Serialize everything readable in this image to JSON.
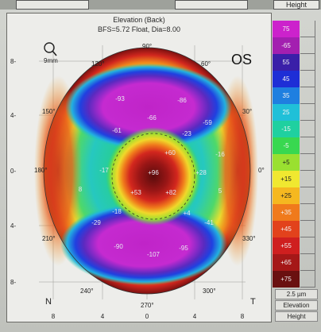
{
  "top_strip": {
    "height_label": "Height"
  },
  "map": {
    "title": "Elevation (Back)",
    "subtitle": "BFS=5.72 Float, Dia=8.00",
    "eye_label": "OS",
    "zoom_label": "9mm",
    "nasal_label": "N",
    "temporal_label": "T",
    "axis_ticks_left": [
      "8-",
      "4-",
      "0-",
      "4-",
      "8-"
    ],
    "axis_ticks_bottom": [
      "8",
      "4",
      "0",
      "4",
      "8"
    ],
    "degrees": {
      "d90": "90°",
      "d60": "60°",
      "d30": "30°",
      "d0": "0°",
      "d330": "330°",
      "d300": "300°",
      "d270": "270°",
      "d240": "240°",
      "d210": "210°",
      "d180": "180°",
      "d150": "150°",
      "d120": "120°"
    },
    "values": [
      {
        "id": "v1",
        "text": "-93"
      },
      {
        "id": "v2",
        "text": "-86"
      },
      {
        "id": "v3",
        "text": "-66"
      },
      {
        "id": "v4",
        "text": "-61"
      },
      {
        "id": "v5",
        "text": "-59"
      },
      {
        "id": "v6",
        "text": "-23"
      },
      {
        "id": "v7",
        "text": "+60"
      },
      {
        "id": "v8",
        "text": "-16"
      },
      {
        "id": "v9",
        "text": "-17"
      },
      {
        "id": "v10",
        "text": "+96"
      },
      {
        "id": "v11",
        "text": "+28"
      },
      {
        "id": "v12",
        "text": "8"
      },
      {
        "id": "v13",
        "text": "+53"
      },
      {
        "id": "v14",
        "text": "+82"
      },
      {
        "id": "v15",
        "text": "5"
      },
      {
        "id": "v16",
        "text": "-18"
      },
      {
        "id": "v17",
        "text": "+4"
      },
      {
        "id": "v18",
        "text": "-29"
      },
      {
        "id": "v19",
        "text": "-41"
      },
      {
        "id": "v20",
        "text": "-90"
      },
      {
        "id": "v21",
        "text": "-107"
      },
      {
        "id": "v22",
        "text": "-95"
      }
    ]
  },
  "scale": {
    "entries": [
      {
        "label": "75",
        "color": "#cc22cc"
      },
      {
        "label": "-65",
        "color": "#a31fb0"
      },
      {
        "label": "55",
        "color": "#3a1fa8"
      },
      {
        "label": "45",
        "color": "#1e2ed6"
      },
      {
        "label": "35",
        "color": "#1f7fe0"
      },
      {
        "label": "25",
        "color": "#20c0d8"
      },
      {
        "label": "-15",
        "color": "#1fd0a0"
      },
      {
        "label": "-5",
        "color": "#38d850"
      },
      {
        "label": "+5",
        "color": "#9ae030"
      },
      {
        "label": "+15",
        "color": "#f0e830"
      },
      {
        "label": "+25",
        "color": "#f5b820"
      },
      {
        "label": "+35",
        "color": "#f07a1c"
      },
      {
        "label": "+45",
        "color": "#e2421c"
      },
      {
        "label": "+55",
        "color": "#cf1f1f"
      },
      {
        "label": "+65",
        "color": "#a51818"
      },
      {
        "label": "+75",
        "color": "#6a1010"
      }
    ],
    "step": "2.5 µm",
    "type_label": "Elevation",
    "height_label": "Height"
  }
}
